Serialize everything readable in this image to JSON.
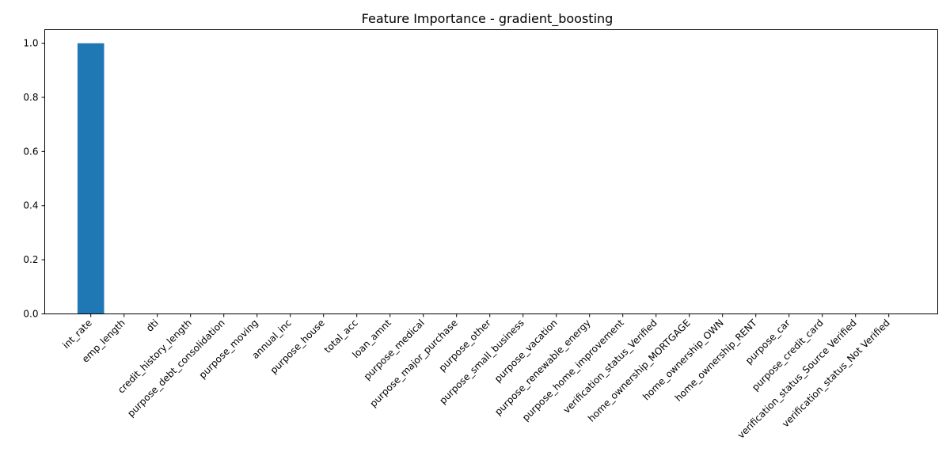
{
  "chart_data": {
    "type": "bar",
    "title": "Feature Importance - gradient_boosting",
    "xlabel": "",
    "ylabel": "",
    "ylim": [
      0,
      1.05
    ],
    "yticks": [
      "0.0",
      "0.2",
      "0.4",
      "0.6",
      "0.8",
      "1.0"
    ],
    "grid": false,
    "bar_color": "#1f77b4",
    "categories": [
      "int_rate",
      "emp_length",
      "dti",
      "credit_history_length",
      "purpose_debt_consolidation",
      "purpose_moving",
      "annual_inc",
      "purpose_house",
      "total_acc",
      "loan_amnt",
      "purpose_medical",
      "purpose_major_purchase",
      "purpose_other",
      "purpose_small_business",
      "purpose_vacation",
      "purpose_renewable_energy",
      "purpose_home_improvement",
      "verification_status_Verified",
      "home_ownership_MORTGAGE",
      "home_ownership_OWN",
      "home_ownership_RENT",
      "purpose_car",
      "purpose_credit_card",
      "verification_status_Source Verified",
      "verification_status_Not Verified"
    ],
    "values": [
      1.0,
      0,
      0,
      0,
      0,
      0,
      0,
      0,
      0,
      0,
      0,
      0,
      0,
      0,
      0,
      0,
      0,
      0,
      0,
      0,
      0,
      0,
      0,
      0,
      0
    ]
  }
}
